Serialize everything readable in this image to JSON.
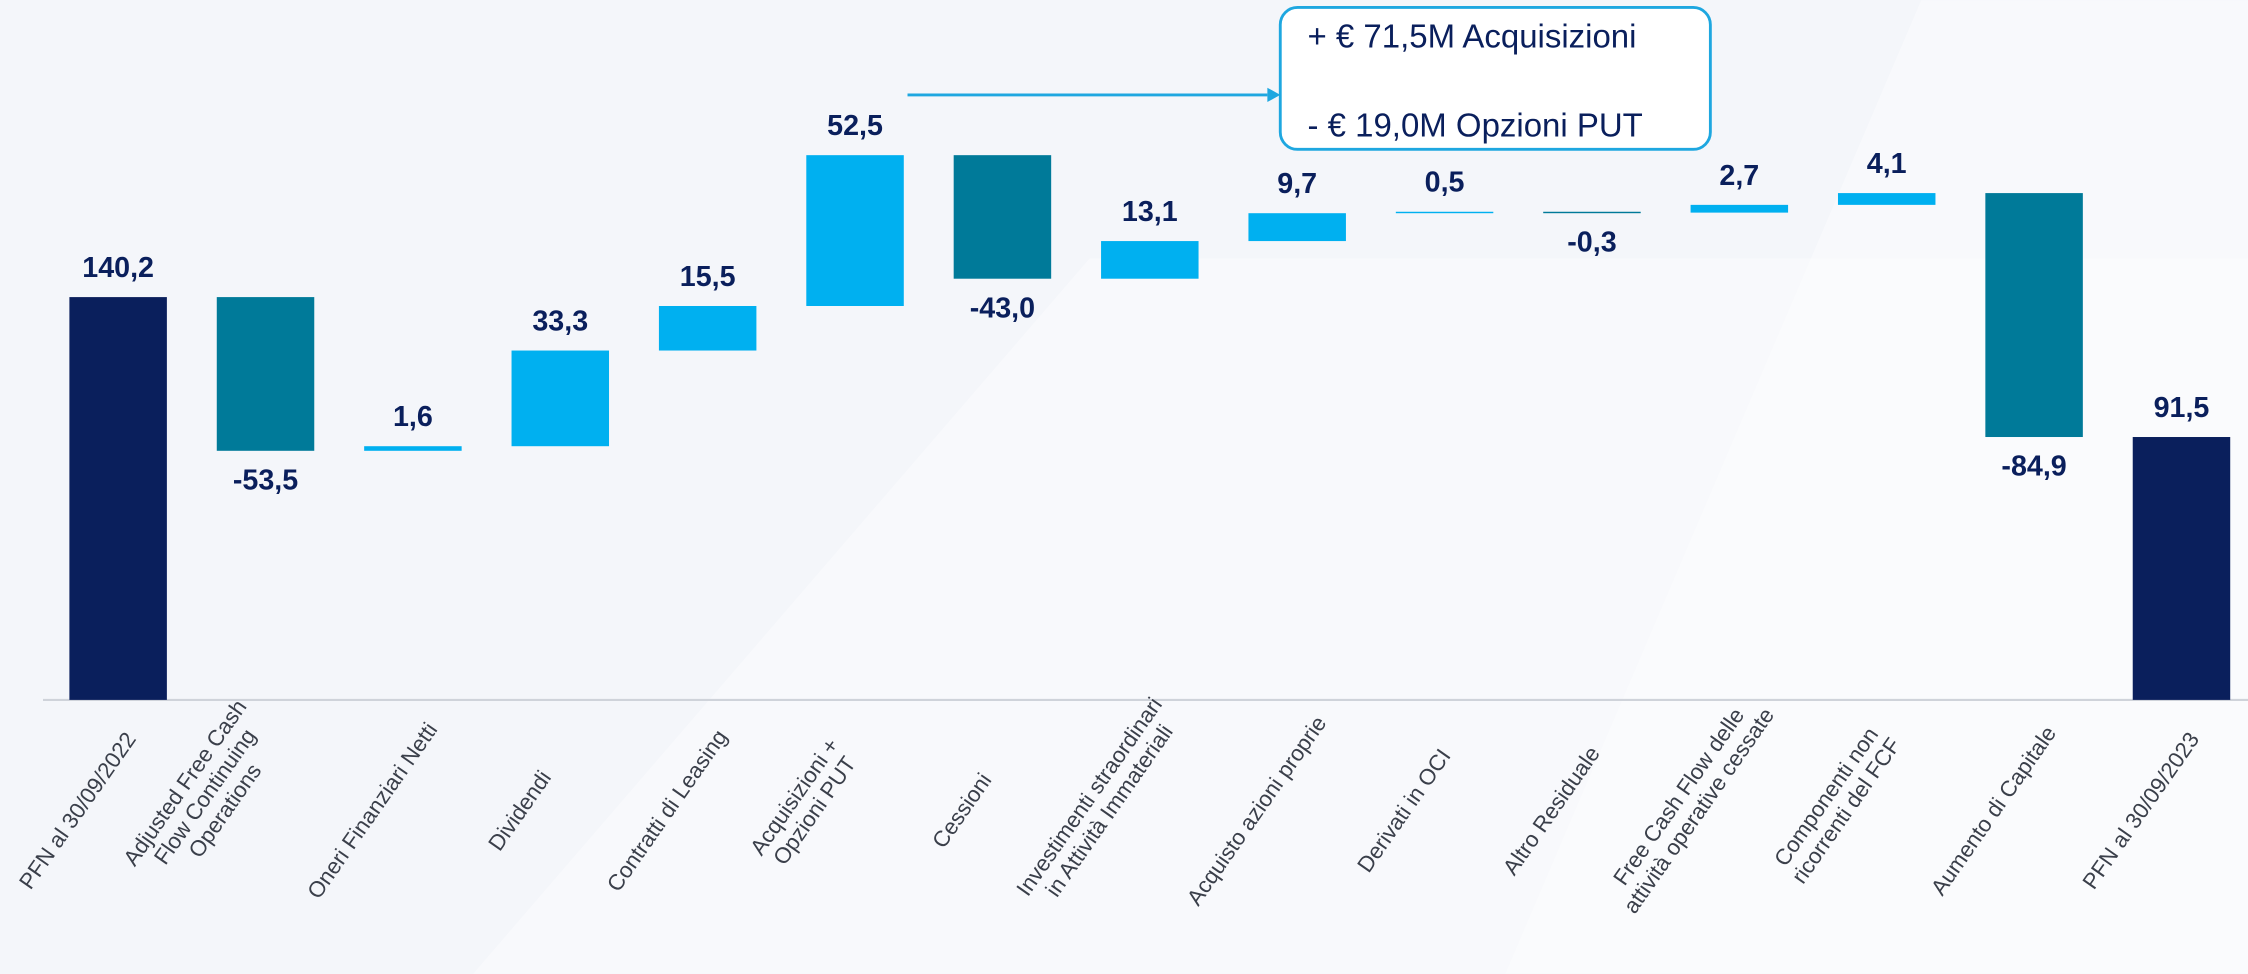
{
  "chart_data": {
    "type": "waterfall",
    "categories": [
      "PFN al 30/09/2022",
      "Adjusted Free Cash\nFlow Continuing\nOperations",
      "Oneri Finanziari Netti",
      "Dividendi",
      "Contratti di Leasing",
      "Acquisizioni +\nOpzioni PUT",
      "Cessioni",
      "Investimenti straordinari\nin Attività Immateriali",
      "Acquisto azioni proprie",
      "Derivati in OCI",
      "Altro Residuale",
      "Free Cash Flow delle\nattività operative cessate",
      "Componenti non\nricorrenti del FCF",
      "Aumento di Capitale",
      "PFN al 30/09/2023"
    ],
    "values": [
      140.2,
      -53.5,
      1.6,
      33.3,
      15.5,
      52.5,
      -43.0,
      13.1,
      9.7,
      0.5,
      -0.3,
      2.7,
      4.1,
      -84.9,
      91.5
    ],
    "value_labels": [
      "140,2",
      "-53,5",
      "1,6",
      "33,3",
      "15,5",
      "52,5",
      "-43,0",
      "13,1",
      "9,7",
      "0,5",
      "-0,3",
      "2,7",
      "4,1",
      "-84,9",
      "91,5"
    ],
    "measure": [
      "absolute",
      "relative",
      "relative",
      "relative",
      "relative",
      "relative",
      "relative",
      "relative",
      "relative",
      "relative",
      "relative",
      "relative",
      "relative",
      "relative",
      "absolute"
    ],
    "colors": {
      "absolute": "#0a1f5c",
      "increase": "#00b0f0",
      "decrease": "#007a99"
    },
    "ylim": [
      0,
      200
    ],
    "annotations": [
      "+ € 71,5M Acquisizioni",
      "- € 19,0M Opzioni PUT"
    ]
  }
}
